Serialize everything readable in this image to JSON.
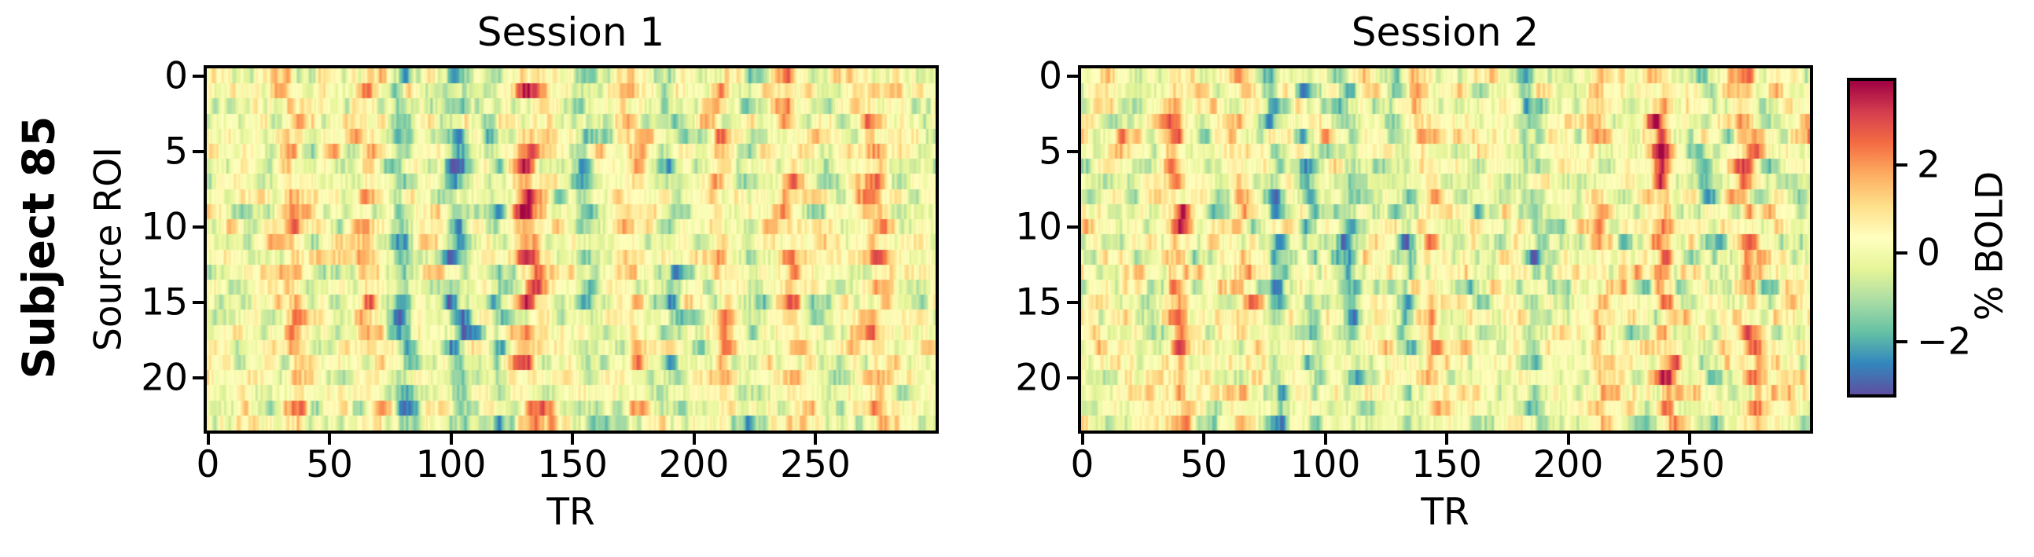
{
  "figure": {
    "row_label": "Subject 85",
    "background": "#ffffff",
    "text_color": "#000000"
  },
  "panels": [
    {
      "title": "Session 1",
      "xlabel": "TR",
      "ylabel": "Source ROI",
      "x_tick_labels": [
        "0",
        "50",
        "100",
        "150",
        "200",
        "250"
      ],
      "y_tick_labels": [
        "0",
        "5",
        "10",
        "15",
        "20"
      ]
    },
    {
      "title": "Session 2",
      "xlabel": "TR",
      "ylabel": "",
      "x_tick_labels": [
        "0",
        "50",
        "100",
        "150",
        "200",
        "250"
      ],
      "y_tick_labels": [
        "0",
        "5",
        "10",
        "15",
        "20"
      ]
    }
  ],
  "colorbar": {
    "label": "% BOLD",
    "tick_labels": [
      "2",
      "0",
      "−2"
    ],
    "tick_values": [
      2,
      0,
      -2
    ]
  },
  "chart_data": {
    "type": "heatmap",
    "figure_row_label": "Subject 85",
    "shared": {
      "n_rows": 24,
      "n_cols": 300,
      "xlabel": "TR",
      "ylabel": "Source ROI",
      "x_ticks": [
        0,
        50,
        100,
        150,
        200,
        250
      ],
      "y_ticks": [
        0,
        5,
        10,
        15,
        20
      ],
      "x_range": [
        0,
        299
      ],
      "value_label": "% BOLD",
      "vmin": -3.2,
      "vmax": 3.9,
      "colormap": "Spectral_r",
      "colorbar_ticks": [
        2,
        0,
        -2
      ],
      "grid": false,
      "colormap_stops": [
        {
          "pos": 0.0,
          "color": "#5e4fa2"
        },
        {
          "pos": 0.1,
          "color": "#3288bd"
        },
        {
          "pos": 0.2,
          "color": "#66c2a5"
        },
        {
          "pos": 0.3,
          "color": "#abdda4"
        },
        {
          "pos": 0.4,
          "color": "#e6f598"
        },
        {
          "pos": 0.5,
          "color": "#ffffbf"
        },
        {
          "pos": 0.6,
          "color": "#fee08b"
        },
        {
          "pos": 0.7,
          "color": "#fdae61"
        },
        {
          "pos": 0.8,
          "color": "#f46d43"
        },
        {
          "pos": 0.9,
          "color": "#d53e4f"
        },
        {
          "pos": 1.0,
          "color": "#9e0142"
        }
      ]
    },
    "panels": [
      {
        "title": "Session 1",
        "seed": 85101,
        "events": [
          {
            "t": 33,
            "a": 2.1,
            "w": 3.2
          },
          {
            "t": 63,
            "a": 1.7,
            "w": 3.0
          },
          {
            "t": 130,
            "a": 2.5,
            "w": 4.0
          },
          {
            "t": 172,
            "a": 1.5,
            "w": 3.0
          },
          {
            "t": 208,
            "a": 1.7,
            "w": 2.6
          },
          {
            "t": 237,
            "a": 1.9,
            "w": 3.2
          },
          {
            "t": 272,
            "a": 2.1,
            "w": 3.5
          },
          {
            "t": 78,
            "a": -2.1,
            "w": 2.8
          },
          {
            "t": 100,
            "a": -2.3,
            "w": 3.5
          },
          {
            "t": 117,
            "a": -1.7,
            "w": 2.5
          },
          {
            "t": 155,
            "a": -1.7,
            "w": 3.0
          },
          {
            "t": 190,
            "a": -1.5,
            "w": 3.0
          },
          {
            "t": 222,
            "a": -1.1,
            "w": 2.5
          }
        ]
      },
      {
        "title": "Session 2",
        "seed": 85102,
        "events": [
          {
            "t": 37,
            "a": 2.4,
            "w": 3.2
          },
          {
            "t": 65,
            "a": 1.3,
            "w": 3.0
          },
          {
            "t": 140,
            "a": 1.4,
            "w": 3.0
          },
          {
            "t": 210,
            "a": 1.5,
            "w": 2.6
          },
          {
            "t": 237,
            "a": 2.6,
            "w": 2.8
          },
          {
            "t": 273,
            "a": 1.9,
            "w": 3.2
          },
          {
            "t": 78,
            "a": -1.9,
            "w": 2.6
          },
          {
            "t": 92,
            "a": -1.5,
            "w": 2.4
          },
          {
            "t": 108,
            "a": -1.7,
            "w": 3.0
          },
          {
            "t": 130,
            "a": -1.3,
            "w": 2.6
          },
          {
            "t": 182,
            "a": -1.7,
            "w": 3.0
          },
          {
            "t": 255,
            "a": -1.0,
            "w": 2.5
          }
        ]
      }
    ]
  }
}
